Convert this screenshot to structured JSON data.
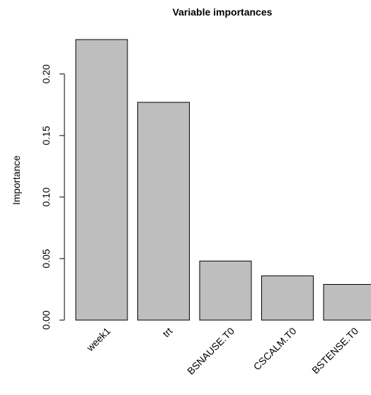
{
  "chart_data": {
    "type": "bar",
    "title": "Variable importances",
    "xlabel": "",
    "ylabel": "Importance",
    "categories": [
      "week1",
      "trt",
      "BSNAUSE.T0",
      "CSCALM.T0",
      "BSTENSE.T0"
    ],
    "values": [
      0.228,
      0.177,
      0.048,
      0.036,
      0.029
    ],
    "yticks": [
      0.0,
      0.05,
      0.1,
      0.15,
      0.2
    ],
    "ytick_labels": [
      "0.00",
      "0.05",
      "0.10",
      "0.15",
      "0.20"
    ],
    "ylim": [
      0,
      0.228
    ],
    "grid": false,
    "bar_color": "#bebebe",
    "bar_edge_color": "#000000"
  }
}
